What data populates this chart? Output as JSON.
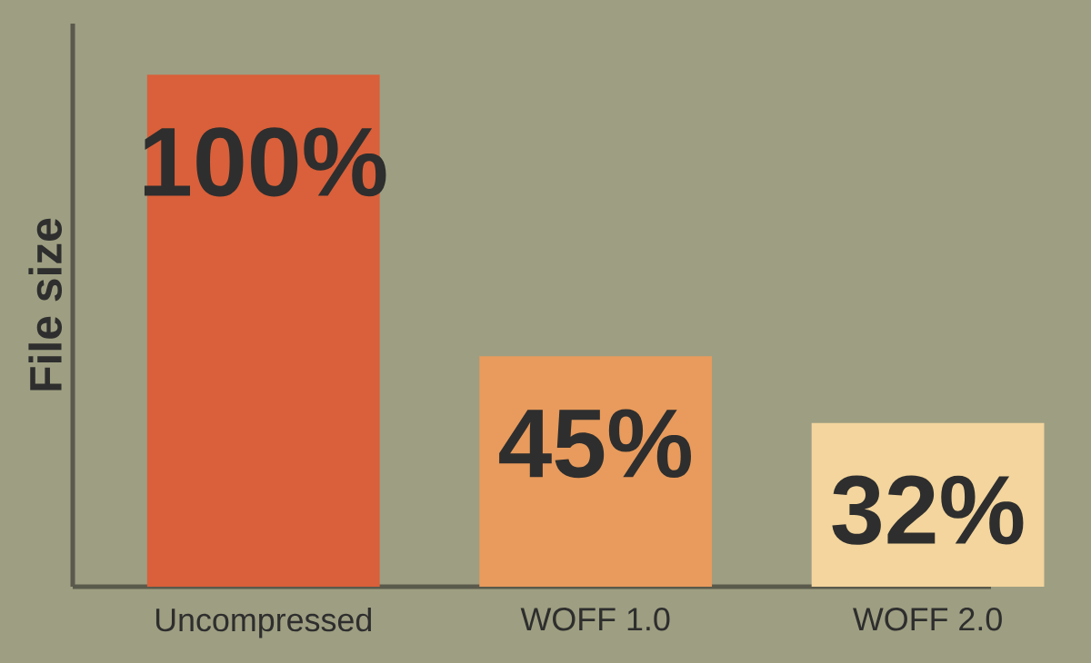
{
  "chart_data": {
    "type": "bar",
    "ylabel": "File size",
    "categories": [
      "Uncompressed",
      "WOFF 1.0",
      "WOFF 2.0"
    ],
    "values": [
      100,
      45,
      32
    ],
    "colors": [
      "#d9603a",
      "#e89b5c",
      "#f3d59d"
    ],
    "value_labels": [
      "100%",
      "45%",
      "32%"
    ],
    "ylim": [
      0,
      110
    ],
    "tick_labels": "x"
  }
}
